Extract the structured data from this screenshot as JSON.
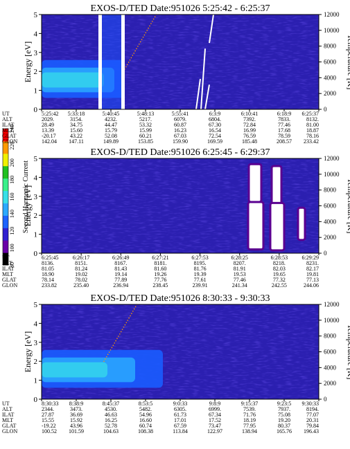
{
  "colorbar": {
    "label": "Second Harmonic Current",
    "ticks": [
      "80",
      "100",
      "120",
      "140",
      "160",
      "180",
      "200",
      "220",
      "240"
    ],
    "colors": [
      "#000000",
      "#6a00a8",
      "#2f1fd0",
      "#1c63ff",
      "#2aa9ff",
      "#36e0e8",
      "#39f08a",
      "#20c020",
      "#f0f000",
      "#ff9a00",
      "#ff0000"
    ]
  },
  "chart_data": [
    {
      "type": "heatmap",
      "title": "EXOS-D/TED   Date:951026  5:25:42 - 6:25:37",
      "ylabel": "Energy [eV]",
      "ylabel_right": "Temperature [K]",
      "ylim": [
        0,
        5
      ],
      "ylim_right": [
        0,
        12000
      ],
      "yticks": [
        "0",
        "1",
        "2",
        "3",
        "4",
        "5"
      ],
      "yticks_right": [
        "0",
        "2000",
        "4000",
        "6000",
        "8000",
        "10000",
        "12000"
      ],
      "rows": [
        {
          "label": "UT",
          "values": [
            "5:25:42",
            "5:33:18",
            "5:40:45",
            "5:48:13",
            "5:55:41",
            "6:3:9",
            "6:10:41",
            "6:18:9",
            "6:25:37"
          ]
        },
        {
          "label": "ALT",
          "values": [
            "2029.",
            "3154.",
            "4232.",
            "5217.",
            "6079.",
            "6804.",
            "7392.",
            "7833.",
            "8132."
          ]
        },
        {
          "label": "ILAT",
          "values": [
            "28.49",
            "34.75",
            "44.47",
            "53.32",
            "60.87",
            "67.30",
            "72.84",
            "77.46",
            "81.00"
          ]
        },
        {
          "label": "MLT",
          "values": [
            "13.39",
            "15.60",
            "15.79",
            "15.99",
            "16.23",
            "16.54",
            "16.99",
            "17.68",
            "18.87"
          ]
        },
        {
          "label": "GLAT",
          "values": [
            "-20.17",
            "43.22",
            "52.08",
            "60.21",
            "67.03",
            "72.54",
            "76.59",
            "78.59",
            "78.16"
          ]
        },
        {
          "label": "GLON",
          "values": [
            "142.04",
            "147.11",
            "149.89",
            "153.85",
            "159.90",
            "169.59",
            "185.48",
            "208.57",
            "233.42"
          ]
        }
      ]
    },
    {
      "type": "heatmap",
      "title": "EXOS-D/TED   Date:951026  6:25:45 - 6:29:37",
      "ylabel": "Energy [eV]",
      "ylabel_right": "Temperature [K]",
      "ylim": [
        0,
        5
      ],
      "ylim_right": [
        0,
        12000
      ],
      "yticks": [
        "0",
        "1",
        "2",
        "3",
        "4",
        "5"
      ],
      "yticks_right": [
        "0",
        "2000",
        "4000",
        "6000",
        "8000",
        "10000",
        "12000"
      ],
      "rows": [
        {
          "label": "UT",
          "values": [
            "6:25:45",
            "6:26:17",
            "6:26:49",
            "6:27:21",
            "6:27:53",
            "6:28:25",
            "6:28:53",
            "6:29:29"
          ]
        },
        {
          "label": "ALT",
          "values": [
            "8136.",
            "8151.",
            "8167.",
            "8181.",
            "8195.",
            "8207.",
            "8218.",
            "8231."
          ]
        },
        {
          "label": "ILAT",
          "values": [
            "81.05",
            "81.24",
            "81.43",
            "81.60",
            "81.76",
            "81.91",
            "82.03",
            "82.17"
          ]
        },
        {
          "label": "MLT",
          "values": [
            "18.90",
            "19.02",
            "19.14",
            "19.26",
            "19.39",
            "19.53",
            "19.65",
            "19.81"
          ]
        },
        {
          "label": "GLAT",
          "values": [
            "78.14",
            "78.02",
            "77.89",
            "77.76",
            "77.61",
            "77.46",
            "77.32",
            "77.13"
          ]
        },
        {
          "label": "GLON",
          "values": [
            "233.82",
            "235.40",
            "236.94",
            "238.45",
            "239.91",
            "241.34",
            "242.55",
            "244.06"
          ]
        }
      ]
    },
    {
      "type": "heatmap",
      "title": "EXOS-D/TED   Date:951026  8:30:33 - 9:30:33",
      "ylabel": "Energy [eV]",
      "ylabel_right": "Temperature [K]",
      "ylim": [
        0,
        5
      ],
      "ylim_right": [
        0,
        12000
      ],
      "yticks": [
        "0",
        "1",
        "2",
        "3",
        "4",
        "5"
      ],
      "yticks_right": [
        "0",
        "2000",
        "4000",
        "6000",
        "8000",
        "10000",
        "12000"
      ],
      "rows": [
        {
          "label": "UT",
          "values": [
            "8:30:33",
            "8:38:9",
            "8:45:37",
            "8:53:5",
            "9:0:33",
            "9:8:9",
            "9:15:37",
            "9:23:5",
            "9:30:33"
          ]
        },
        {
          "label": "ALT",
          "values": [
            "2344.",
            "3473.",
            "4530.",
            "5482.",
            "6305.",
            "6999.",
            "7539.",
            "7937.",
            "8194."
          ]
        },
        {
          "label": "ILAT",
          "values": [
            "27.87",
            "36.69",
            "46.63",
            "54.96",
            "61.73",
            "67.34",
            "71.76",
            "75.08",
            "77.07"
          ]
        },
        {
          "label": "MLT",
          "values": [
            "15.55",
            "15.92",
            "16.25",
            "16.60",
            "17.01",
            "17.52",
            "18.19",
            "19.20",
            "20.31"
          ]
        },
        {
          "label": "GLAT",
          "values": [
            "-19.22",
            "43.96",
            "52.78",
            "60.74",
            "67.59",
            "73.47",
            "77.95",
            "80.37",
            "79.84"
          ]
        },
        {
          "label": "GLON",
          "values": [
            "100.52",
            "101.59",
            "104.63",
            "108.38",
            "113.84",
            "122.97",
            "138.94",
            "165.76",
            "196.43"
          ]
        }
      ]
    }
  ]
}
